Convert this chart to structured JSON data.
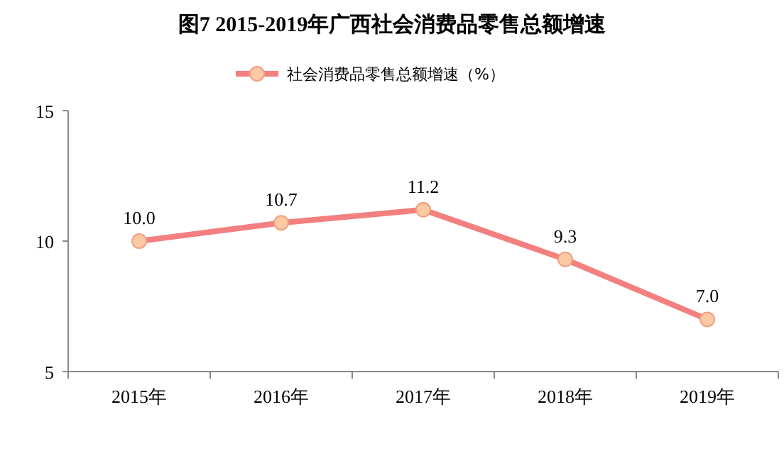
{
  "chart_data": {
    "type": "line",
    "title": "图7 2015-2019年广西社会消费品零售总额增速",
    "categories": [
      "2015年",
      "2016年",
      "2017年",
      "2018年",
      "2019年"
    ],
    "series": [
      {
        "name": "社会消费品零售总额增速（%）",
        "color": "#f47f7f",
        "values": [
          10.0,
          10.7,
          11.2,
          9.3,
          7.0
        ],
        "value_labels": [
          "10.0",
          "10.7",
          "11.2",
          "9.3",
          "7.0"
        ]
      }
    ],
    "ylim": [
      5,
      15
    ],
    "yticks": [
      5,
      10,
      15
    ],
    "grid": false,
    "legend": "top",
    "marker": "circle",
    "line_style": "solid"
  }
}
